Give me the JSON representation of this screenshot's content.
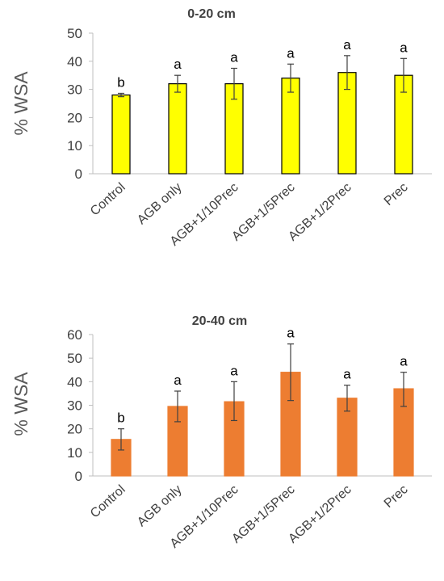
{
  "chart_data": [
    {
      "type": "bar",
      "title": "0-20 cm",
      "ylabel": "% WSA",
      "xlabel": "",
      "ylim": [
        0,
        50
      ],
      "yticks": [
        0,
        10,
        20,
        30,
        40,
        50
      ],
      "categories": [
        "Control",
        "AGB only",
        "AGB+1/10Prec",
        "AGB+1/5Prec",
        "AGB+1/2Prec",
        "Prec"
      ],
      "values": [
        28,
        32,
        32,
        34,
        36,
        35
      ],
      "error_upper": [
        28.6,
        35,
        37.5,
        39,
        42,
        41
      ],
      "error_lower": [
        27.4,
        29,
        26.5,
        29,
        30,
        29
      ],
      "significance": [
        "b",
        "a",
        "a",
        "a",
        "a",
        "a"
      ],
      "bar_color": "#FFFF00",
      "bar_outline": "#000000",
      "grid": false
    },
    {
      "type": "bar",
      "title": "20-40 cm",
      "ylabel": "% WSA",
      "xlabel": "",
      "ylim": [
        0,
        60
      ],
      "yticks": [
        0,
        10,
        20,
        30,
        40,
        50,
        60
      ],
      "categories": [
        "Control",
        "AGB only",
        "AGB+1/10Prec",
        "AGB+1/5Prec",
        "AGB+1/2Prec",
        "Prec"
      ],
      "values": [
        15.5,
        29.5,
        31.5,
        44,
        33,
        37
      ],
      "error_upper": [
        20,
        36,
        40,
        56,
        38.5,
        44
      ],
      "error_lower": [
        11,
        23,
        23.5,
        32,
        27.5,
        29.5
      ],
      "significance": [
        "b",
        "a",
        "a",
        "a",
        "a",
        "a"
      ],
      "bar_color": "#ED7D31",
      "bar_outline": "#ED7D31",
      "grid": false
    }
  ]
}
